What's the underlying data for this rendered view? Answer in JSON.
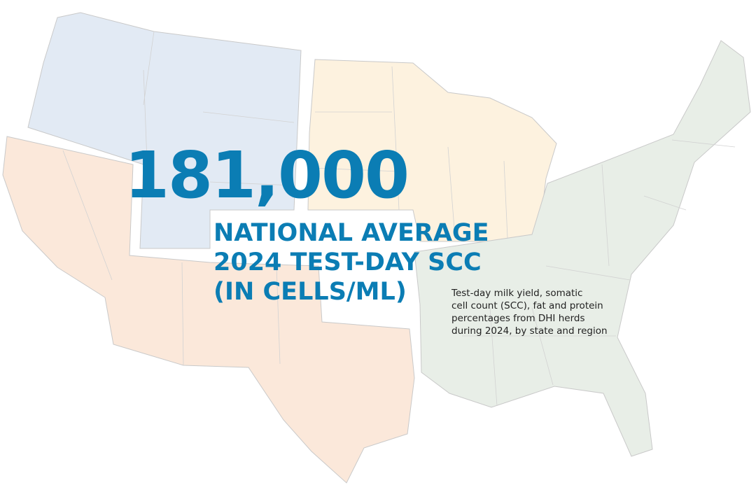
{
  "headline": {
    "figure": "181,000",
    "label_lines": [
      "NATIONAL AVERAGE",
      "2024 TEST-DAY SCC",
      "(IN CELLS/ML)"
    ]
  },
  "caption_lines": [
    "Test-day milk yield, somatic",
    "cell count (SCC), fat and protein",
    "percentages from DHI herds",
    "during 2024, by state and region"
  ]
}
